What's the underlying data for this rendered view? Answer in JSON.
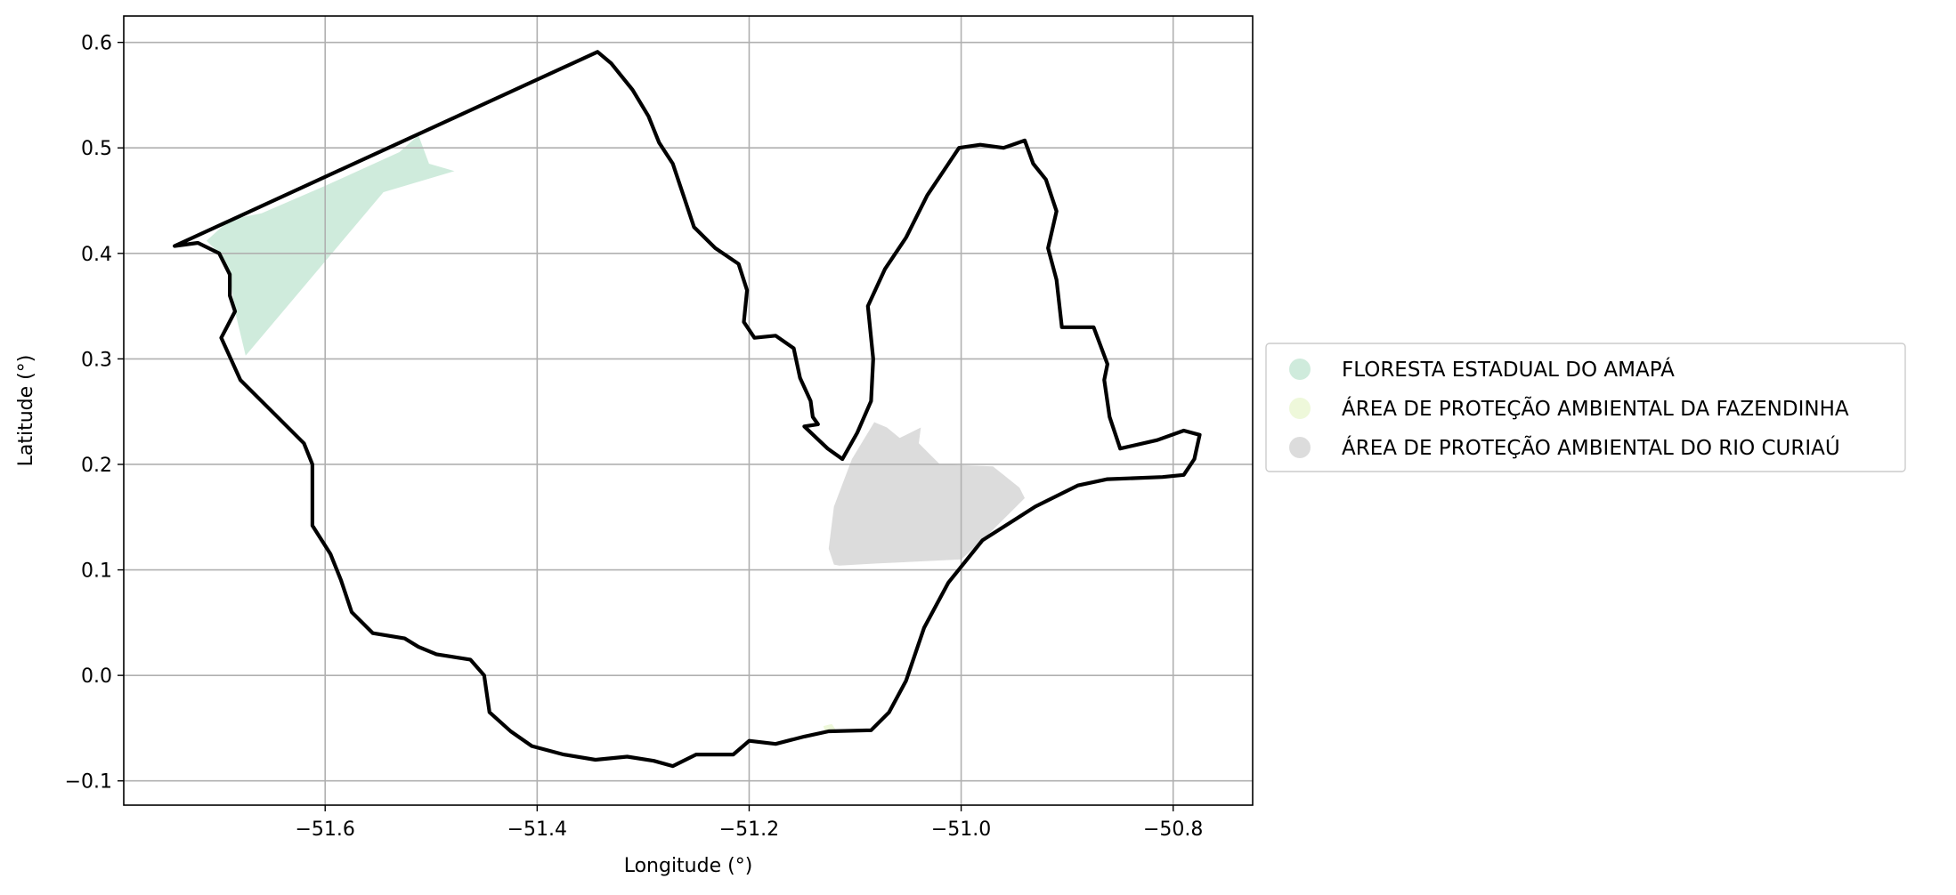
{
  "chart_data": {
    "type": "map",
    "title": "",
    "xlabel": "Longitude (°)",
    "ylabel": "Latitude (°)",
    "xlim": [
      -51.79,
      -50.725
    ],
    "ylim": [
      -0.123,
      0.625
    ],
    "grid": true,
    "x_ticks": [
      {
        "value": -51.6,
        "label": "−51.6"
      },
      {
        "value": -51.4,
        "label": "−51.4"
      },
      {
        "value": -51.2,
        "label": "−51.2"
      },
      {
        "value": -51.0,
        "label": "−51.0"
      },
      {
        "value": -50.8,
        "label": "−50.8"
      }
    ],
    "y_ticks": [
      {
        "value": 0.6,
        "label": "0.6"
      },
      {
        "value": 0.5,
        "label": "0.5"
      },
      {
        "value": 0.4,
        "label": "0.4"
      },
      {
        "value": 0.3,
        "label": "0.3"
      },
      {
        "value": 0.2,
        "label": "0.2"
      },
      {
        "value": 0.1,
        "label": "0.1"
      },
      {
        "value": 0.0,
        "label": "0.0"
      },
      {
        "value": -0.1,
        "label": "−0.1"
      }
    ],
    "legend_position": "right-center",
    "boundary": {
      "color": "#000000",
      "coords": [
        [
          -51.742,
          0.407
        ],
        [
          -51.343,
          0.591
        ],
        [
          -51.33,
          0.58
        ],
        [
          -51.31,
          0.555
        ],
        [
          -51.295,
          0.53
        ],
        [
          -51.285,
          0.505
        ],
        [
          -51.272,
          0.485
        ],
        [
          -51.262,
          0.455
        ],
        [
          -51.252,
          0.425
        ],
        [
          -51.232,
          0.405
        ],
        [
          -51.21,
          0.39
        ],
        [
          -51.202,
          0.365
        ],
        [
          -51.205,
          0.335
        ],
        [
          -51.195,
          0.32
        ],
        [
          -51.175,
          0.322
        ],
        [
          -51.158,
          0.31
        ],
        [
          -51.152,
          0.282
        ],
        [
          -51.142,
          0.26
        ],
        [
          -51.14,
          0.245
        ],
        [
          -51.135,
          0.238
        ],
        [
          -51.148,
          0.236
        ],
        [
          -51.126,
          0.215
        ],
        [
          -51.112,
          0.205
        ],
        [
          -51.098,
          0.23
        ],
        [
          -51.085,
          0.26
        ],
        [
          -51.083,
          0.3
        ],
        [
          -51.088,
          0.35
        ],
        [
          -51.072,
          0.385
        ],
        [
          -51.052,
          0.415
        ],
        [
          -51.032,
          0.455
        ],
        [
          -51.012,
          0.485
        ],
        [
          -51.002,
          0.5
        ],
        [
          -50.982,
          0.503
        ],
        [
          -50.96,
          0.5
        ],
        [
          -50.94,
          0.507
        ],
        [
          -50.932,
          0.485
        ],
        [
          -50.92,
          0.47
        ],
        [
          -50.91,
          0.44
        ],
        [
          -50.918,
          0.405
        ],
        [
          -50.91,
          0.375
        ],
        [
          -50.905,
          0.33
        ],
        [
          -50.875,
          0.33
        ],
        [
          -50.862,
          0.295
        ],
        [
          -50.865,
          0.28
        ],
        [
          -50.86,
          0.245
        ],
        [
          -50.85,
          0.215
        ],
        [
          -50.815,
          0.223
        ],
        [
          -50.79,
          0.232
        ],
        [
          -50.775,
          0.228
        ],
        [
          -50.78,
          0.205
        ],
        [
          -50.79,
          0.19
        ],
        [
          -50.81,
          0.188
        ],
        [
          -50.862,
          0.186
        ],
        [
          -50.89,
          0.18
        ],
        [
          -50.93,
          0.16
        ],
        [
          -50.98,
          0.128
        ],
        [
          -51.012,
          0.088
        ],
        [
          -51.035,
          0.045
        ],
        [
          -51.052,
          -0.005
        ],
        [
          -51.068,
          -0.035
        ],
        [
          -51.085,
          -0.052
        ],
        [
          -51.125,
          -0.053
        ],
        [
          -51.148,
          -0.058
        ],
        [
          -51.175,
          -0.065
        ],
        [
          -51.2,
          -0.062
        ],
        [
          -51.215,
          -0.075
        ],
        [
          -51.25,
          -0.075
        ],
        [
          -51.272,
          -0.086
        ],
        [
          -51.29,
          -0.081
        ],
        [
          -51.315,
          -0.077
        ],
        [
          -51.345,
          -0.08
        ],
        [
          -51.375,
          -0.075
        ],
        [
          -51.405,
          -0.067
        ],
        [
          -51.425,
          -0.053
        ],
        [
          -51.445,
          -0.035
        ],
        [
          -51.45,
          0.0
        ],
        [
          -51.463,
          0.015
        ],
        [
          -51.495,
          0.02
        ],
        [
          -51.512,
          0.027
        ],
        [
          -51.525,
          0.035
        ],
        [
          -51.555,
          0.04
        ],
        [
          -51.575,
          0.06
        ],
        [
          -51.585,
          0.09
        ],
        [
          -51.595,
          0.115
        ],
        [
          -51.612,
          0.142
        ],
        [
          -51.612,
          0.165
        ],
        [
          -51.612,
          0.2
        ],
        [
          -51.62,
          0.22
        ],
        [
          -51.65,
          0.25
        ],
        [
          -51.68,
          0.28
        ],
        [
          -51.698,
          0.32
        ],
        [
          -51.685,
          0.345
        ],
        [
          -51.69,
          0.36
        ],
        [
          -51.69,
          0.38
        ],
        [
          -51.7,
          0.4
        ],
        [
          -51.72,
          0.41
        ],
        [
          -51.742,
          0.407
        ]
      ]
    },
    "areas": [
      {
        "name": "FLORESTA ESTADUAL DO AMAPÁ",
        "color": "#cfebdc",
        "coords": [
          [
            -51.712,
            0.412
          ],
          [
            -51.69,
            0.432
          ],
          [
            -51.66,
            0.438
          ],
          [
            -51.6,
            0.464
          ],
          [
            -51.53,
            0.496
          ],
          [
            -51.512,
            0.512
          ],
          [
            -51.502,
            0.485
          ],
          [
            -51.478,
            0.478
          ],
          [
            -51.545,
            0.458
          ],
          [
            -51.675,
            0.303
          ],
          [
            -51.685,
            0.345
          ],
          [
            -51.69,
            0.38
          ],
          [
            -51.7,
            0.4
          ]
        ]
      },
      {
        "name": "ÁREA DE PROTEÇÃO AMBIENTAL DA FAZENDINHA",
        "color": "#eef8da",
        "coords": [
          [
            -51.13,
            -0.048
          ],
          [
            -51.122,
            -0.046
          ],
          [
            -51.118,
            -0.052
          ],
          [
            -51.128,
            -0.054
          ]
        ]
      },
      {
        "name": "ÁREA DE PROTEÇÃO AMBIENTAL DO RIO CURIAÚ",
        "color": "#dcdcdc",
        "coords": [
          [
            -51.12,
            0.105
          ],
          [
            -51.125,
            0.12
          ],
          [
            -51.12,
            0.16
          ],
          [
            -51.103,
            0.205
          ],
          [
            -51.082,
            0.24
          ],
          [
            -51.07,
            0.235
          ],
          [
            -51.058,
            0.225
          ],
          [
            -51.038,
            0.235
          ],
          [
            -51.04,
            0.22
          ],
          [
            -51.02,
            0.2
          ],
          [
            -50.97,
            0.198
          ],
          [
            -50.96,
            0.19
          ],
          [
            -50.945,
            0.178
          ],
          [
            -50.94,
            0.168
          ],
          [
            -50.98,
            0.128
          ],
          [
            -51.0,
            0.11
          ],
          [
            -51.04,
            0.108
          ],
          [
            -51.08,
            0.106
          ],
          [
            -51.115,
            0.104
          ]
        ]
      }
    ]
  }
}
